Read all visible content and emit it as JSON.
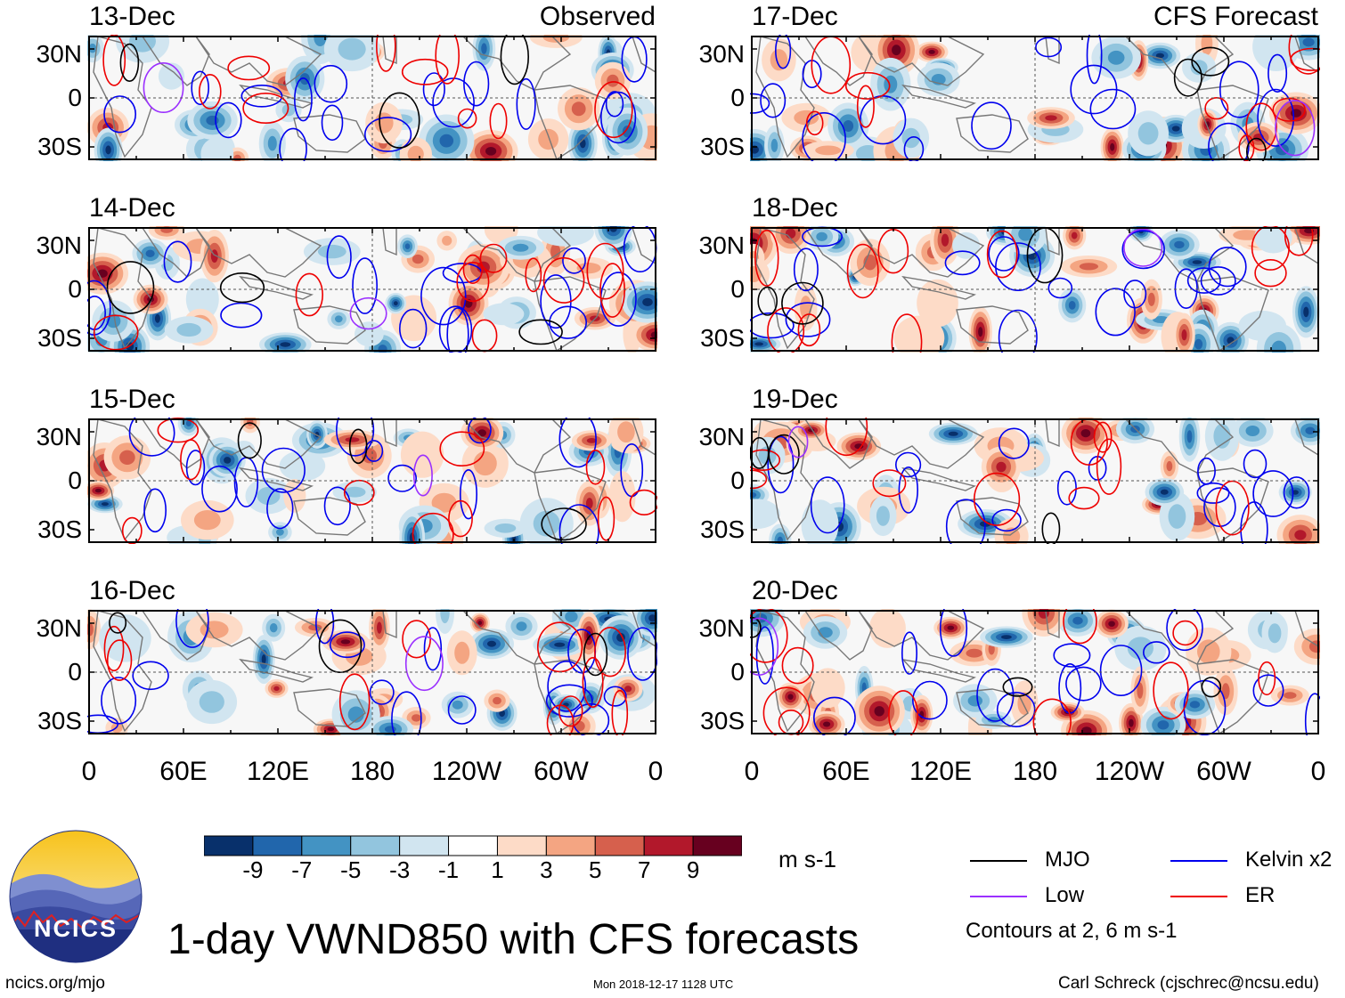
{
  "chart_data": {
    "type": "heatmap",
    "title": "1-day VWND850 with CFS forecasts",
    "variable": "VWND850",
    "units": "m s-1",
    "observed_label": "Observed",
    "forecast_label": "CFS Forecast",
    "lat_ticks": [
      "30N",
      "0",
      "30S"
    ],
    "lon_ticks": [
      "0",
      "60E",
      "120E",
      "180",
      "120W",
      "60W",
      "0"
    ],
    "lat_range": [
      -40,
      40
    ],
    "lon_range": [
      0,
      360
    ],
    "panels": [
      {
        "date": "13-Dec",
        "kind": "observed",
        "seed": 1
      },
      {
        "date": "14-Dec",
        "kind": "observed",
        "seed": 2
      },
      {
        "date": "15-Dec",
        "kind": "observed",
        "seed": 3
      },
      {
        "date": "16-Dec",
        "kind": "observed",
        "seed": 4
      },
      {
        "date": "17-Dec",
        "kind": "forecast",
        "seed": 5
      },
      {
        "date": "18-Dec",
        "kind": "forecast",
        "seed": 6
      },
      {
        "date": "19-Dec",
        "kind": "forecast",
        "seed": 7
      },
      {
        "date": "20-Dec",
        "kind": "forecast",
        "seed": 8
      }
    ],
    "colorbar": {
      "levels": [
        "-9",
        "-7",
        "-5",
        "-3",
        "-1",
        "1",
        "3",
        "5",
        "7",
        "9"
      ],
      "colors": [
        "#08306b",
        "#2166ac",
        "#4393c3",
        "#92c5de",
        "#d1e5f0",
        "#ffffff",
        "#fddbc7",
        "#f4a582",
        "#d6604d",
        "#b2182b",
        "#67001f"
      ]
    },
    "contour_legend": [
      {
        "label": "MJO",
        "color": "#000000"
      },
      {
        "label": "Kelvin x2",
        "color": "#0000ee"
      },
      {
        "label": "Low",
        "color": "#9b30ff"
      },
      {
        "label": "ER",
        "color": "#ee0000"
      }
    ],
    "contour_note": "Contours at 2, 6 m s-1"
  },
  "footer": {
    "logo_text": "NCICS",
    "site": "ncics.org/mjo",
    "timestamp": "Mon 2018-12-17 1128 UTC",
    "credit": "Carl Schreck (cjschrec@ncsu.edu)"
  }
}
